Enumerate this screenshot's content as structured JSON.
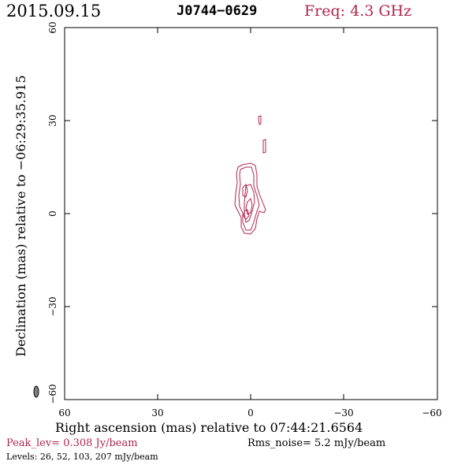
{
  "header": {
    "date": "2015.09.15",
    "source": "J0744−0629",
    "freq": "Freq: 4.3 GHz"
  },
  "axes": {
    "xlabel": "Right ascension (mas) relative to 07:44:21.6564",
    "ylabel": "Declination (mas) relative to −06:29:35.915",
    "x_ticks": [
      "60",
      "30",
      "0",
      "−30",
      "−60"
    ],
    "y_ticks": [
      "60",
      "30",
      "0",
      "−30",
      "−60"
    ]
  },
  "footer": {
    "peak": "Peak_lev=  0.308 Jy/beam",
    "rms": "Rms_noise=  5.2 mJy/beam",
    "levels": "Levels:  26,  52, 103, 207 mJy/beam"
  },
  "colors": {
    "contour": "#b0264e",
    "beam": "#808080",
    "accent": "#b0264e"
  }
}
